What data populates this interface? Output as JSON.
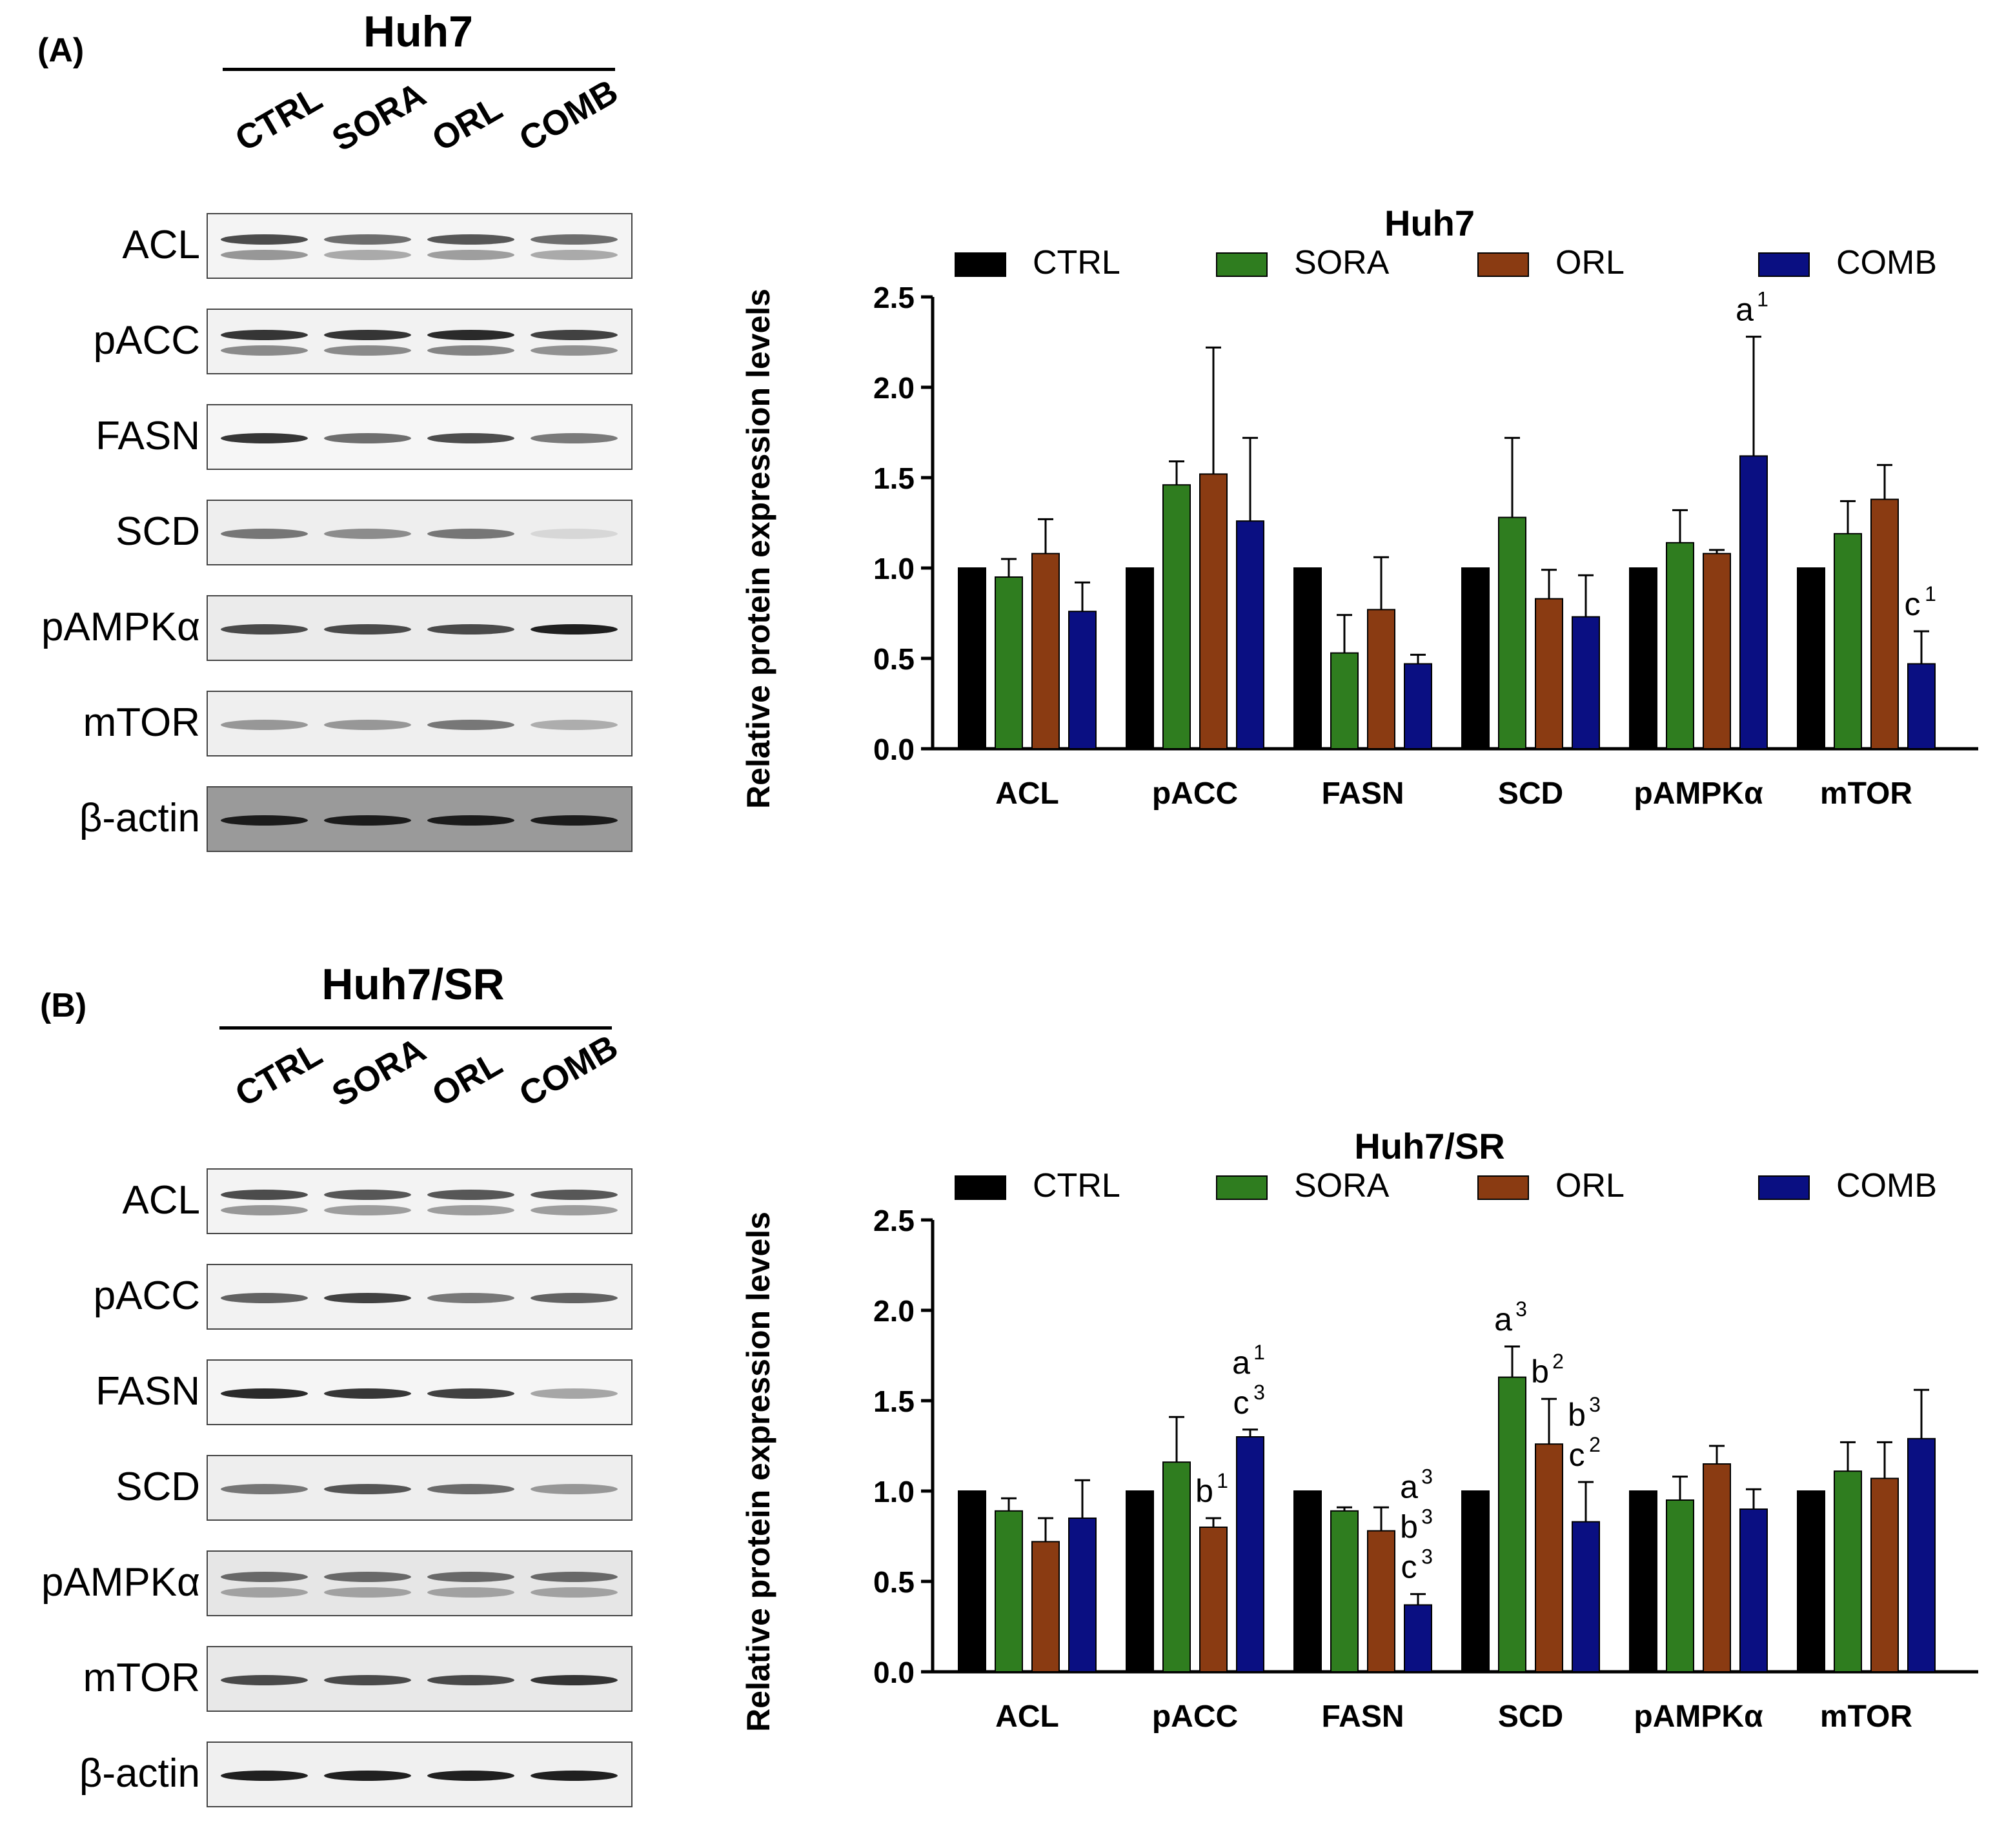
{
  "panels": [
    {
      "letter": "(A)",
      "cell_line": "Huh7",
      "lanes": [
        "CTRL",
        "SORA",
        "ORL",
        "COMB"
      ],
      "blots": [
        {
          "protein": "ACL",
          "bg": "#f4f4f4",
          "bands": [
            0.75,
            0.6,
            0.7,
            0.6
          ],
          "doublet": true
        },
        {
          "protein": "pACC",
          "bg": "#f2f2f2",
          "bands": [
            0.85,
            0.85,
            0.9,
            0.8
          ],
          "doublet": true
        },
        {
          "protein": "FASN",
          "bg": "#f6f6f6",
          "bands": [
            0.85,
            0.6,
            0.75,
            0.55
          ],
          "doublet": false
        },
        {
          "protein": "SCD",
          "bg": "#eeeeee",
          "bands": [
            0.55,
            0.45,
            0.55,
            0.1
          ],
          "doublet": false
        },
        {
          "protein": "pAMPKα",
          "bg": "#ebebeb",
          "bands": [
            0.75,
            0.75,
            0.75,
            0.95
          ],
          "doublet": false
        },
        {
          "protein": "mTOR",
          "bg": "#efefef",
          "bands": [
            0.4,
            0.4,
            0.55,
            0.3
          ],
          "doublet": false
        },
        {
          "protein": "β-actin",
          "bg": "#9a9a9a",
          "bands": [
            0.95,
            0.95,
            0.95,
            0.95
          ],
          "doublet": false
        }
      ]
    },
    {
      "letter": "(B)",
      "cell_line": "Huh7/SR",
      "lanes": [
        "CTRL",
        "SORA",
        "ORL",
        "COMB"
      ],
      "blots": [
        {
          "protein": "ACL",
          "bg": "#f3f3f3",
          "bands": [
            0.75,
            0.7,
            0.7,
            0.7
          ],
          "doublet": true
        },
        {
          "protein": "pACC",
          "bg": "#f2f2f2",
          "bands": [
            0.65,
            0.8,
            0.55,
            0.65
          ],
          "doublet": false
        },
        {
          "protein": "FASN",
          "bg": "#f5f5f5",
          "bands": [
            0.9,
            0.85,
            0.8,
            0.35
          ],
          "doublet": false
        },
        {
          "protein": "SCD",
          "bg": "#eeeeee",
          "bands": [
            0.55,
            0.7,
            0.6,
            0.4
          ],
          "doublet": false
        },
        {
          "protein": "pAMPKα",
          "bg": "#e6e6e6",
          "bands": [
            0.6,
            0.6,
            0.6,
            0.6
          ],
          "doublet": true
        },
        {
          "protein": "mTOR",
          "bg": "#e8e8e8",
          "bands": [
            0.75,
            0.75,
            0.75,
            0.85
          ],
          "doublet": false
        },
        {
          "protein": "β-actin",
          "bg": "#f0f0f0",
          "bands": [
            0.95,
            0.95,
            0.95,
            0.95
          ],
          "doublet": false
        }
      ]
    }
  ],
  "colors": {
    "CTRL": "#000000",
    "SORA": "#2f7d1f",
    "ORL": "#8a3b12",
    "COMB": "#0a0f82"
  },
  "chart_data": [
    {
      "type": "bar",
      "title": "Huh7",
      "xlabel": "",
      "ylabel": "Relative protein expression levels",
      "ylim": [
        0,
        2.5
      ],
      "yticks": [
        "0.0",
        "0.5",
        "1.0",
        "1.5",
        "2.0",
        "2.5"
      ],
      "legend_position": "top",
      "categories": [
        "ACL",
        "pACC",
        "FASN",
        "SCD",
        "pAMPKα",
        "mTOR"
      ],
      "series": [
        {
          "name": "CTRL",
          "values": [
            1.0,
            1.0,
            1.0,
            1.0,
            1.0,
            1.0
          ],
          "errors": [
            0,
            0,
            0,
            0,
            0,
            0
          ]
        },
        {
          "name": "SORA",
          "values": [
            0.95,
            1.46,
            0.53,
            1.28,
            1.14,
            1.19
          ],
          "errors": [
            0.1,
            0.13,
            0.21,
            0.44,
            0.18,
            0.18
          ]
        },
        {
          "name": "ORL",
          "values": [
            1.08,
            1.52,
            0.77,
            0.83,
            1.08,
            1.38
          ],
          "errors": [
            0.19,
            0.7,
            0.29,
            0.16,
            0.02,
            0.19
          ]
        },
        {
          "name": "COMB",
          "values": [
            0.76,
            1.26,
            0.47,
            0.73,
            1.62,
            0.47
          ],
          "errors": [
            0.16,
            0.46,
            0.05,
            0.23,
            0.66,
            0.18
          ]
        }
      ],
      "annotations": [
        {
          "category": "pAMPKα",
          "series": "COMB",
          "lines": [
            [
              "a",
              "1"
            ]
          ]
        },
        {
          "category": "mTOR",
          "series": "COMB",
          "lines": [
            [
              "c",
              "1"
            ]
          ]
        }
      ]
    },
    {
      "type": "bar",
      "title": "Huh7/SR",
      "xlabel": "",
      "ylabel": "Relative protein expression levels",
      "ylim": [
        0,
        2.5
      ],
      "yticks": [
        "0.0",
        "0.5",
        "1.0",
        "1.5",
        "2.0",
        "2.5"
      ],
      "legend_position": "top",
      "categories": [
        "ACL",
        "pACC",
        "FASN",
        "SCD",
        "pAMPKα",
        "mTOR"
      ],
      "series": [
        {
          "name": "CTRL",
          "values": [
            1.0,
            1.0,
            1.0,
            1.0,
            1.0,
            1.0
          ],
          "errors": [
            0,
            0,
            0,
            0,
            0,
            0
          ]
        },
        {
          "name": "SORA",
          "values": [
            0.89,
            1.16,
            0.89,
            1.63,
            0.95,
            1.11
          ],
          "errors": [
            0.07,
            0.25,
            0.02,
            0.17,
            0.13,
            0.16
          ]
        },
        {
          "name": "ORL",
          "values": [
            0.72,
            0.8,
            0.78,
            1.26,
            1.15,
            1.07
          ],
          "errors": [
            0.13,
            0.05,
            0.13,
            0.25,
            0.1,
            0.2
          ]
        },
        {
          "name": "COMB",
          "values": [
            0.85,
            1.3,
            0.37,
            0.83,
            0.9,
            1.29
          ],
          "errors": [
            0.21,
            0.04,
            0.06,
            0.22,
            0.11,
            0.27
          ]
        }
      ],
      "annotations": [
        {
          "category": "pACC",
          "series": "ORL",
          "lines": [
            [
              "b",
              "1"
            ]
          ]
        },
        {
          "category": "pACC",
          "series": "COMB",
          "lines": [
            [
              "a",
              "1"
            ],
            [
              "c",
              "3"
            ]
          ]
        },
        {
          "category": "FASN",
          "series": "COMB",
          "lines": [
            [
              "a",
              "3"
            ],
            [
              "b",
              "3"
            ],
            [
              "c",
              "3"
            ]
          ]
        },
        {
          "category": "SCD",
          "series": "SORA",
          "lines": [
            [
              "a",
              "3"
            ]
          ]
        },
        {
          "category": "SCD",
          "series": "ORL",
          "lines": [
            [
              "b",
              "2"
            ]
          ]
        },
        {
          "category": "SCD",
          "series": "COMB",
          "lines": [
            [
              "b",
              "3"
            ],
            [
              "c",
              "2"
            ]
          ]
        }
      ]
    }
  ]
}
